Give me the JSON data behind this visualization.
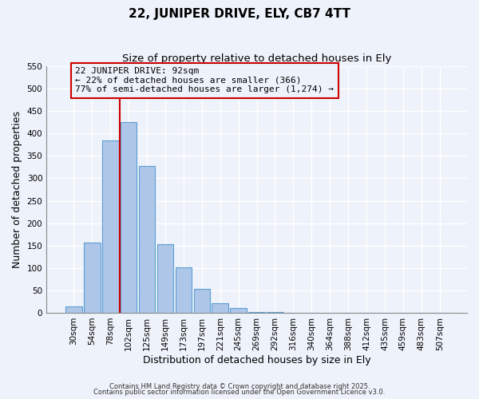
{
  "title1": "22, JUNIPER DRIVE, ELY, CB7 4TT",
  "title2": "Size of property relative to detached houses in Ely",
  "xlabel": "Distribution of detached houses by size in Ely",
  "ylabel": "Number of detached properties",
  "bar_labels": [
    "30sqm",
    "54sqm",
    "78sqm",
    "102sqm",
    "125sqm",
    "149sqm",
    "173sqm",
    "197sqm",
    "221sqm",
    "245sqm",
    "269sqm",
    "292sqm",
    "316sqm",
    "340sqm",
    "364sqm",
    "388sqm",
    "412sqm",
    "435sqm",
    "459sqm",
    "483sqm",
    "507sqm"
  ],
  "bar_values": [
    15,
    157,
    385,
    425,
    328,
    153,
    101,
    54,
    21,
    10,
    2,
    1,
    0,
    0,
    0,
    0,
    0,
    0,
    0,
    0,
    0
  ],
  "bar_color": "#aec6e8",
  "bar_edge_color": "#5a9fd4",
  "vline_color": "#cc0000",
  "annotation_line1": "22 JUNIPER DRIVE: 92sqm",
  "annotation_line2": "← 22% of detached houses are smaller (366)",
  "annotation_line3": "77% of semi-detached houses are larger (1,274) →",
  "box_edge_color": "#cc0000",
  "ylim": [
    0,
    550
  ],
  "yticks": [
    0,
    50,
    100,
    150,
    200,
    250,
    300,
    350,
    400,
    450,
    500,
    550
  ],
  "footnote1": "Contains HM Land Registry data © Crown copyright and database right 2025.",
  "footnote2": "Contains public sector information licensed under the Open Government Licence v3.0.",
  "bg_color": "#eef2fa",
  "grid_color": "#ffffff",
  "title_fontsize": 11,
  "subtitle_fontsize": 9.5,
  "axis_label_fontsize": 9,
  "tick_fontsize": 7.5,
  "annotation_fontsize": 8
}
